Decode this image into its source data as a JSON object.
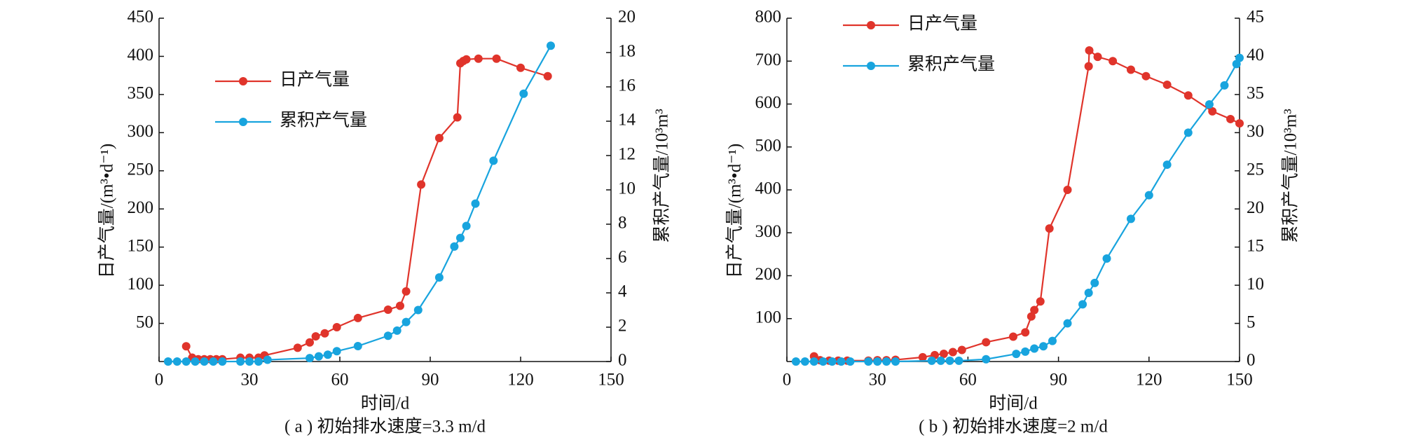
{
  "chart_data": [
    {
      "type": "line",
      "caption": "( a ) 初始排水速度=3.3 m/d",
      "xlabel": "时间/d",
      "ylabel": "日产气量/(m³•d⁻¹)",
      "y2label": "累积产气量/10³m³",
      "xlim": [
        0,
        150
      ],
      "xticks": [
        0,
        30,
        60,
        90,
        120,
        150
      ],
      "ylim": [
        0,
        450
      ],
      "yticks": [
        50,
        100,
        150,
        200,
        250,
        300,
        350,
        400,
        450
      ],
      "y2lim": [
        0,
        20
      ],
      "y2ticks": [
        0,
        2,
        4,
        6,
        8,
        10,
        12,
        14,
        16,
        18,
        20
      ],
      "legend": "center left",
      "series": [
        {
          "name": "日产气量",
          "color": "#e0342b",
          "x": [
            9,
            11,
            13,
            15,
            17,
            19,
            21,
            27,
            30,
            33,
            35,
            46,
            50,
            52,
            55,
            59,
            66,
            76,
            80,
            82,
            87,
            93,
            99,
            100,
            101,
            102,
            106,
            112,
            120,
            129
          ],
          "values": [
            20,
            5,
            3,
            3,
            3,
            3,
            3,
            5,
            5,
            5,
            8,
            18,
            25,
            33,
            37,
            45,
            57,
            68,
            73,
            92,
            232,
            293,
            320,
            391,
            394,
            396,
            397,
            397,
            385,
            374
          ]
        },
        {
          "name": "累积产气量",
          "color": "#18a4de",
          "axis": "y2",
          "x": [
            3,
            6,
            9,
            12,
            15,
            18,
            21,
            27,
            30,
            33,
            36,
            50,
            53,
            56,
            59,
            66,
            76,
            79,
            82,
            86,
            93,
            98,
            100,
            102,
            105,
            111,
            121,
            130
          ],
          "values": [
            0,
            0,
            0,
            0,
            0,
            0,
            0,
            0,
            0,
            0,
            0.1,
            0.2,
            0.3,
            0.4,
            0.6,
            0.9,
            1.5,
            1.8,
            2.3,
            3.0,
            4.9,
            6.7,
            7.2,
            7.9,
            9.2,
            11.7,
            15.6,
            18.4
          ]
        }
      ]
    },
    {
      "type": "line",
      "caption": "( b ) 初始排水速度=2 m/d",
      "xlabel": "时间/d",
      "ylabel": "日产气量/(m³•d⁻¹)",
      "y2label": "累积产气量/10³m³",
      "xlim": [
        0,
        150
      ],
      "xticks": [
        0,
        30,
        60,
        90,
        120,
        150
      ],
      "ylim": [
        0,
        800
      ],
      "yticks": [
        100,
        200,
        300,
        400,
        500,
        600,
        700,
        800
      ],
      "y2lim": [
        0,
        45
      ],
      "y2ticks": [
        0,
        5,
        10,
        15,
        20,
        25,
        30,
        35,
        40,
        45
      ],
      "legend": "upper left",
      "series": [
        {
          "name": "日产气量",
          "color": "#e0342b",
          "x": [
            9,
            11,
            14,
            17,
            20,
            27,
            30,
            33,
            36,
            45,
            49,
            52,
            55,
            58,
            66,
            75,
            79,
            81,
            82,
            84,
            87,
            93,
            100,
            100.2,
            103,
            108,
            114,
            119,
            126,
            133,
            141,
            147,
            150
          ],
          "values": [
            12,
            3,
            2,
            2,
            2,
            2,
            3,
            3,
            4,
            10,
            15,
            18,
            22,
            27,
            45,
            58,
            68,
            105,
            120,
            140,
            310,
            400,
            688,
            725,
            710,
            700,
            680,
            665,
            645,
            620,
            583,
            565,
            555
          ]
        },
        {
          "name": "累积产气量",
          "color": "#18a4de",
          "axis": "y2",
          "x": [
            3,
            6,
            9,
            12,
            15,
            18,
            21,
            27,
            30,
            33,
            36,
            48,
            51,
            54,
            57,
            66,
            76,
            79,
            82,
            85,
            88,
            93,
            98,
            100,
            102,
            106,
            114,
            120,
            126,
            133,
            140,
            145,
            149,
            150
          ],
          "values": [
            0,
            0,
            0,
            0,
            0,
            0,
            0,
            0,
            0,
            0,
            0,
            0.1,
            0.1,
            0.1,
            0.1,
            0.3,
            1,
            1.3,
            1.7,
            2,
            2.7,
            5,
            7.5,
            9,
            10.3,
            13.5,
            18.7,
            21.8,
            25.8,
            30,
            33.7,
            36.2,
            39,
            39.8
          ]
        }
      ]
    }
  ]
}
